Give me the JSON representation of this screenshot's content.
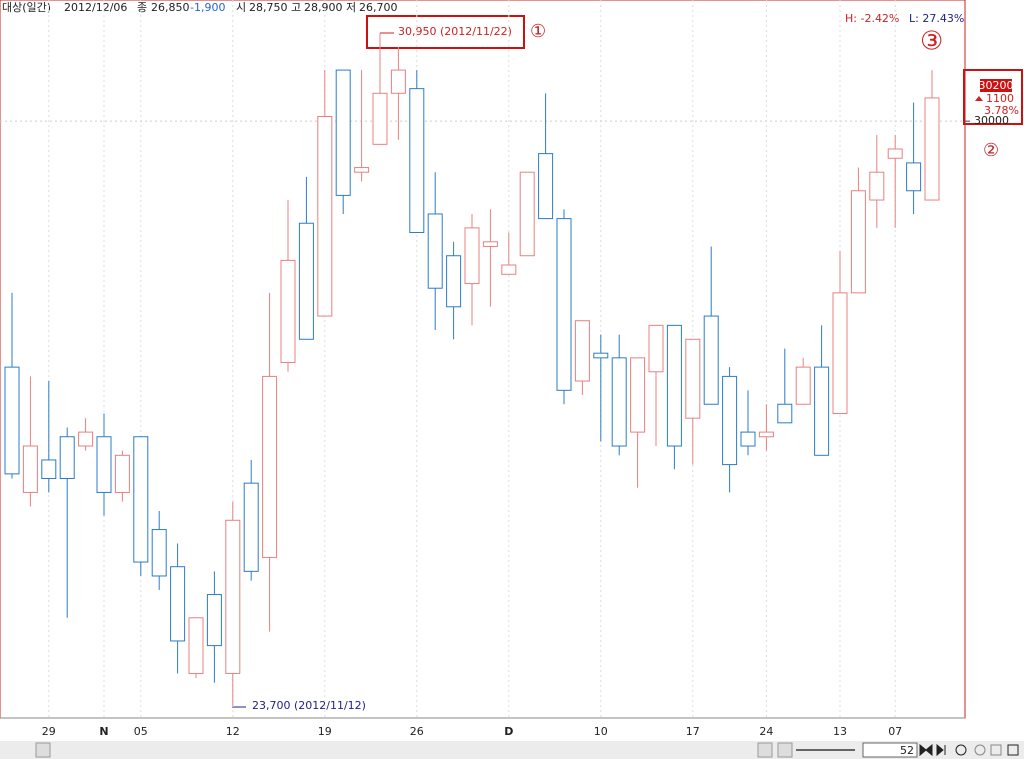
{
  "header": {
    "name": "대상(일간)",
    "date": "2012/12/06",
    "close_label": "종",
    "close": "26,850",
    "change": "-1,900",
    "open_label": "시",
    "open": "28,750",
    "high_label": "고",
    "high": "28,900",
    "low_label": "저",
    "low": "26,700"
  },
  "range": {
    "high": "H: -2.42%",
    "low": "L: 27.43%"
  },
  "annotations": {
    "high": "30,950 (2012/11/22)",
    "low": "23,700 (2012/11/12)",
    "marker_1": "①",
    "marker_2": "②",
    "marker_3": "③"
  },
  "last_price": {
    "price": "30200",
    "change": "1100",
    "rate": "3.78%"
  },
  "scroll": {
    "count": "52"
  },
  "chart_data": {
    "type": "candlestick",
    "categories": [
      null,
      null,
      "29",
      null,
      null,
      "N",
      null,
      "05",
      null,
      null,
      null,
      null,
      "12",
      null,
      null,
      null,
      null,
      "19",
      null,
      null,
      null,
      null,
      "26",
      null,
      null,
      null,
      null,
      "D",
      null,
      null,
      null,
      null,
      "10",
      null,
      null,
      null,
      null,
      "17",
      null,
      null,
      null,
      "24",
      null,
      null,
      null,
      "13",
      null,
      null,
      "07",
      null,
      null
    ],
    "open": [
      27350,
      26000,
      26350,
      26600,
      26500,
      26600,
      26000,
      26600,
      25600,
      25200,
      24050,
      24900,
      24050,
      26100,
      25300,
      27400,
      28900,
      27900,
      30550,
      29450,
      29750,
      30300,
      30350,
      29000,
      28550,
      28250,
      28650,
      28350,
      28550,
      29650,
      28950,
      27200,
      27500,
      27450,
      26650,
      27300,
      27800,
      26800,
      27900,
      27250,
      26650,
      26600,
      26950,
      26950,
      27350,
      26850,
      28150,
      29150,
      29600,
      29550,
      29150
    ],
    "high": [
      28150,
      27250,
      27200,
      26700,
      26800,
      26850,
      26450,
      26600,
      25800,
      25450,
      24650,
      25150,
      25900,
      26350,
      28150,
      29150,
      29400,
      30550,
      30550,
      30550,
      30950,
      30800,
      30550,
      29450,
      28700,
      29000,
      29050,
      28800,
      29450,
      30300,
      29050,
      27850,
      27700,
      27700,
      27450,
      27800,
      27800,
      27650,
      28650,
      27350,
      27100,
      26950,
      27550,
      27450,
      27800,
      28600,
      29500,
      29850,
      29850,
      30200,
      30550
    ],
    "low": [
      26150,
      25850,
      26000,
      24650,
      26450,
      25750,
      25900,
      25100,
      24950,
      24050,
      24000,
      23950,
      23700,
      25050,
      24500,
      27300,
      27650,
      27900,
      29000,
      29350,
      29750,
      29800,
      28800,
      27750,
      27650,
      27800,
      28000,
      28350,
      28550,
      28950,
      26950,
      27050,
      26550,
      26400,
      26050,
      26500,
      26250,
      26300,
      26950,
      26000,
      26400,
      26450,
      26750,
      26950,
      26400,
      26850,
      28150,
      28850,
      28850,
      29000,
      29150
    ],
    "close": [
      26200,
      26500,
      26150,
      26150,
      26650,
      26000,
      26400,
      25250,
      25100,
      24400,
      24650,
      24350,
      25700,
      25150,
      27250,
      28500,
      27650,
      30050,
      29200,
      29500,
      30300,
      30550,
      28800,
      28200,
      28000,
      28850,
      28700,
      28450,
      29450,
      28950,
      27100,
      27850,
      27450,
      26500,
      27450,
      27800,
      26500,
      27650,
      26950,
      26300,
      26500,
      26650,
      26750,
      27350,
      26400,
      28150,
      29250,
      29450,
      29700,
      29250,
      30250
    ],
    "up_color": "#e88080",
    "down_color": "#2a7cc7",
    "ylim": [
      23570,
      31305
    ],
    "yticks": [
      30000
    ]
  }
}
